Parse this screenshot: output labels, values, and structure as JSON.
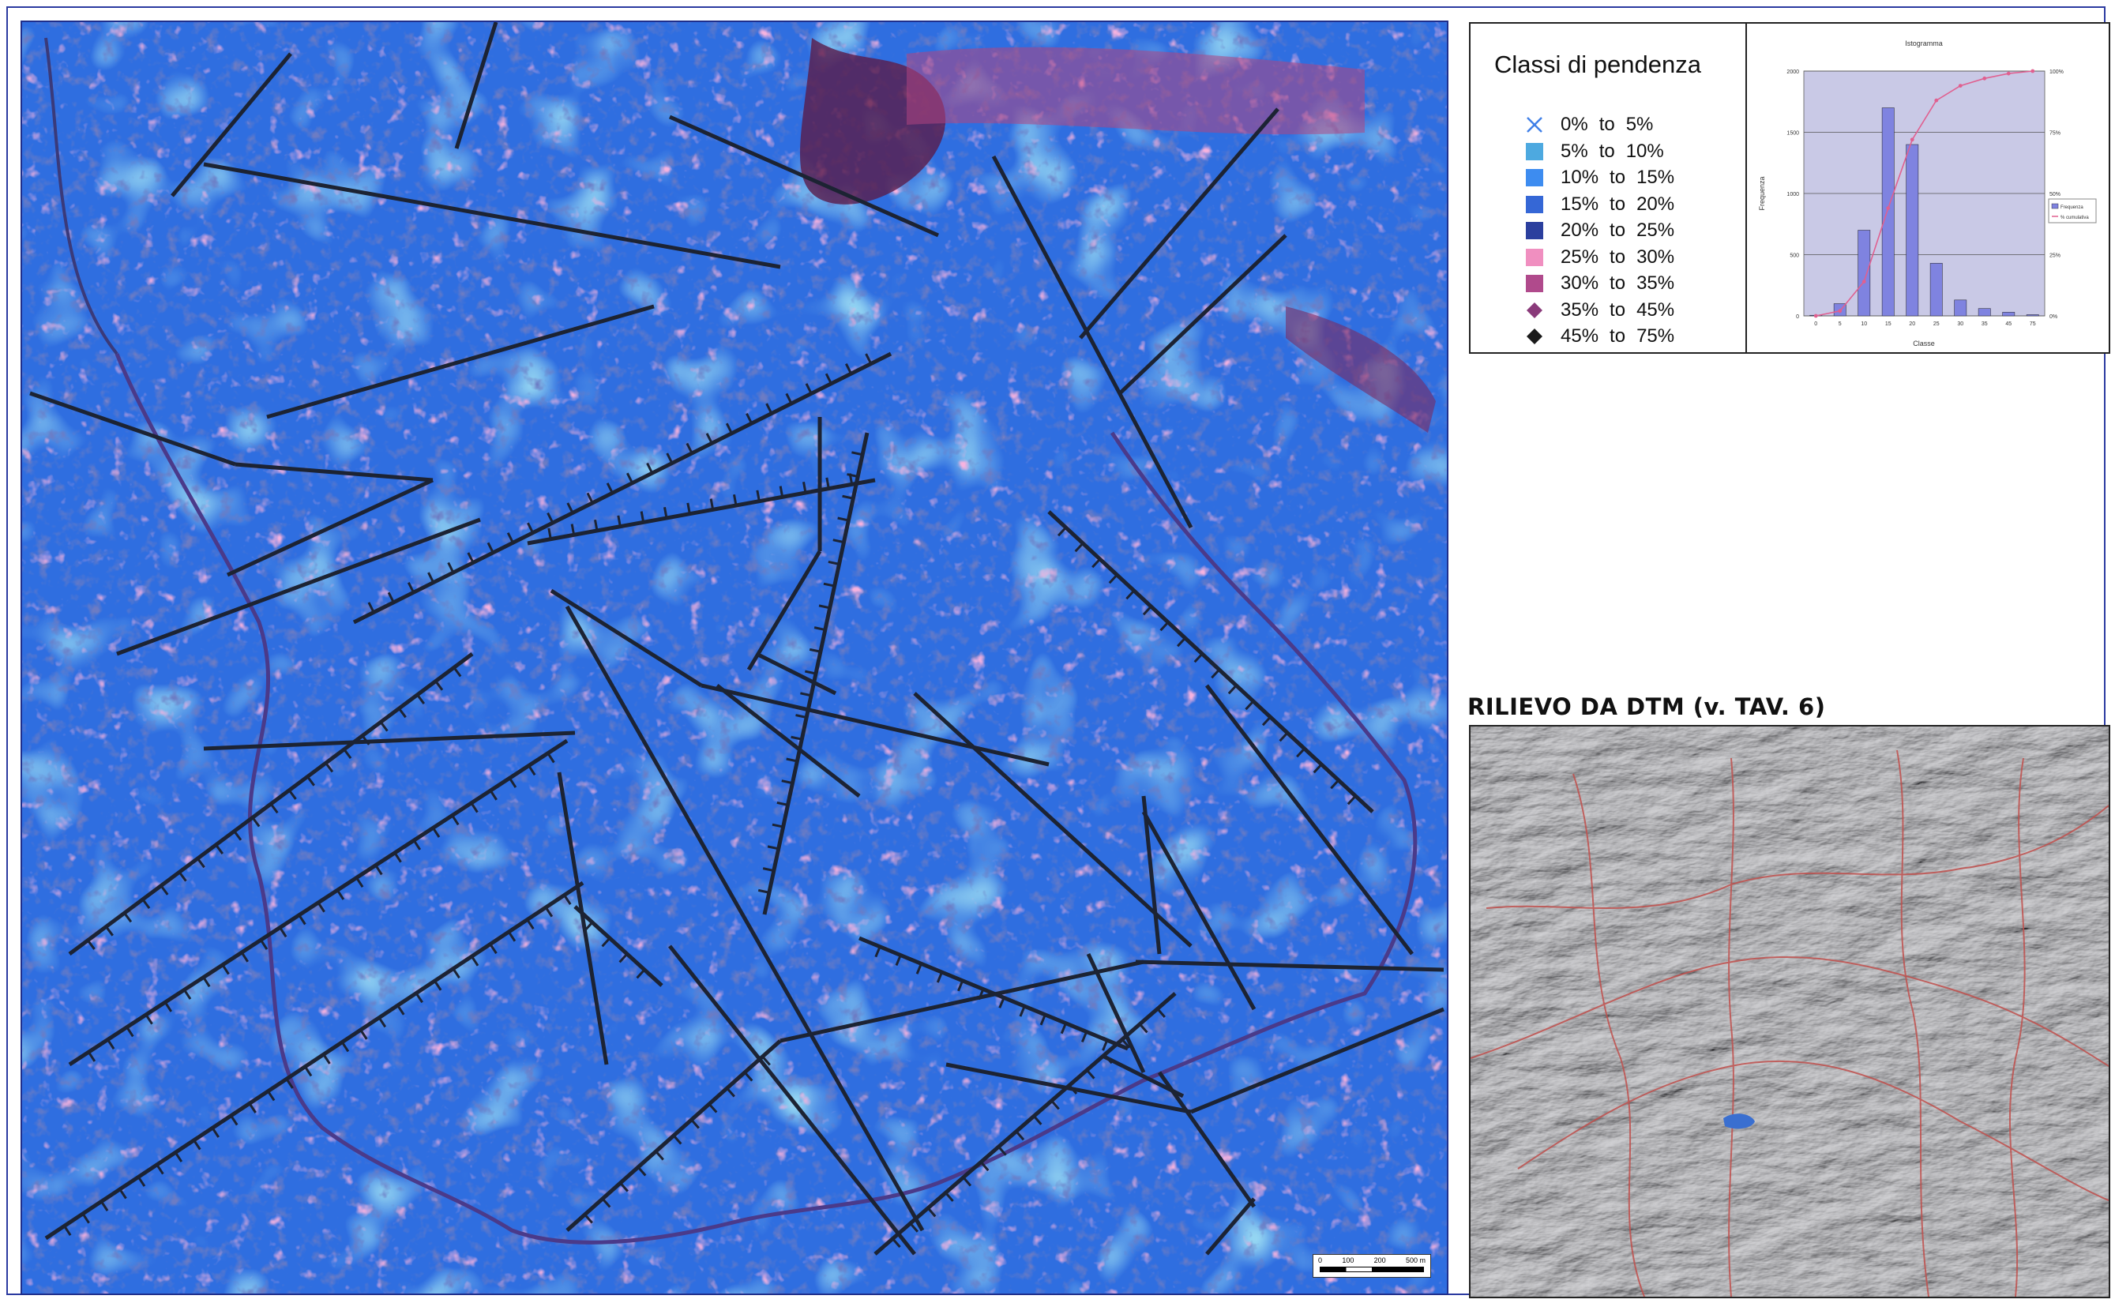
{
  "legend": {
    "title": "Classi di pendenza",
    "classes": [
      {
        "from": "0%",
        "to_word": "to",
        "to": "5%",
        "color": "#3f7fe8",
        "symbol": "cross-icon"
      },
      {
        "from": "5%",
        "to_word": "to",
        "to": "10%",
        "color": "#4da9e0",
        "symbol": "square-icon"
      },
      {
        "from": "10%",
        "to_word": "to",
        "to": "15%",
        "color": "#3d8cf0",
        "symbol": "square-icon"
      },
      {
        "from": "15%",
        "to_word": "to",
        "to": "20%",
        "color": "#3567d6",
        "symbol": "square-icon"
      },
      {
        "from": "20%",
        "to_word": "to",
        "to": "25%",
        "color": "#2b3f9e",
        "symbol": "square-icon"
      },
      {
        "from": "25%",
        "to_word": "to",
        "to": "30%",
        "color": "#f08fc0",
        "symbol": "square-icon"
      },
      {
        "from": "30%",
        "to_word": "to",
        "to": "35%",
        "color": "#b04a8c",
        "symbol": "square-icon"
      },
      {
        "from": "35%",
        "to_word": "to",
        "to": "45%",
        "color": "#8a3a7a",
        "symbol": "diamond-icon"
      },
      {
        "from": "45%",
        "to_word": "to",
        "to": "75%",
        "color": "#1a1a1a",
        "symbol": "diamond-icon"
      }
    ]
  },
  "chart_data": {
    "type": "bar",
    "title": "Istogramma",
    "xlabel": "Classe",
    "ylabel": "Frequenza",
    "categories": [
      "0",
      "5",
      "10",
      "15",
      "20",
      "25",
      "30",
      "35",
      "45",
      "75"
    ],
    "series": [
      {
        "name": "Frequenza",
        "type": "bar",
        "values": [
          5,
          100,
          700,
          1700,
          1400,
          430,
          130,
          60,
          30,
          10
        ]
      },
      {
        "name": "% cumulativa",
        "type": "line",
        "values": [
          0,
          2,
          14,
          44,
          72,
          88,
          94,
          97,
          99,
          100
        ]
      }
    ],
    "ylim": [
      0,
      2000
    ],
    "y2lim": [
      0,
      100
    ],
    "grid": true,
    "legend": "right"
  },
  "scalebar": {
    "labels": [
      "0",
      "100",
      "200",
      "500 m"
    ]
  },
  "dtm": {
    "title": "RILIEVO DA DTM (v. TAV. 6)"
  },
  "colors": {
    "map_base": "#2f6ee0",
    "fault_line": "#1c2333",
    "relief_line": "#c0504d"
  }
}
